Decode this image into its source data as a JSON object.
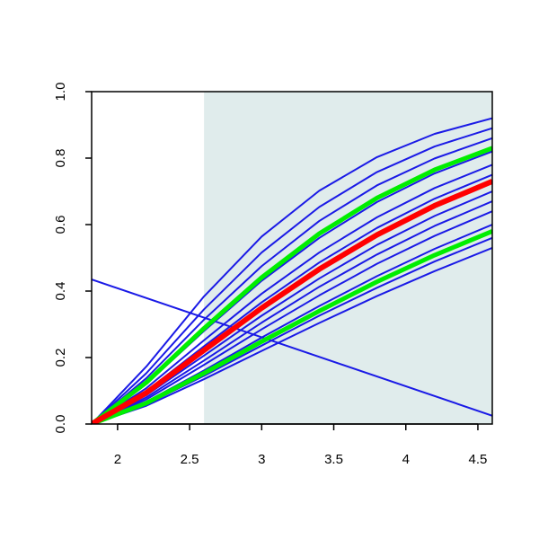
{
  "chart_data": {
    "type": "line",
    "xlim": [
      1.82,
      4.6
    ],
    "ylim": [
      0,
      1
    ],
    "xticks": [
      2.0,
      2.5,
      3.0,
      3.5,
      4.0,
      4.5
    ],
    "yticks": [
      {
        "value": 0,
        "label": "0.0"
      },
      {
        "value": 0.2,
        "label": "0.2"
      },
      {
        "value": 0.4,
        "label": "0.4"
      },
      {
        "value": 0.6,
        "label": "0.6"
      },
      {
        "value": 0.8,
        "label": "0.8"
      },
      {
        "value": 1,
        "label": "1.0"
      }
    ],
    "shaded_region": {
      "x": [
        2.6,
        4.6
      ],
      "color": "#e0ecec"
    },
    "series": [
      {
        "color": "#1a1ae6",
        "line_width": 2,
        "x": [
          1.82,
          2.2,
          2.6,
          3.0,
          3.4,
          3.8,
          4.2,
          4.6
        ],
        "values": [
          0,
          0.173,
          0.384,
          0.564,
          0.702,
          0.803,
          0.873,
          0.92
        ]
      },
      {
        "color": "#1a1ae6",
        "line_width": 2,
        "x": [
          1.82,
          2.2,
          2.6,
          3.0,
          3.4,
          3.8,
          4.2,
          4.6
        ],
        "values": [
          0,
          0.153,
          0.345,
          0.516,
          0.653,
          0.758,
          0.835,
          0.89
        ]
      },
      {
        "color": "#1a1ae6",
        "line_width": 2,
        "x": [
          1.82,
          2.2,
          2.6,
          3.0,
          3.4,
          3.8,
          4.2,
          4.6
        ],
        "values": [
          0,
          0.138,
          0.314,
          0.475,
          0.611,
          0.718,
          0.799,
          0.86
        ]
      },
      {
        "color": "#1a1ae6",
        "line_width": 2,
        "x": [
          1.82,
          2.2,
          2.6,
          3.0,
          3.4,
          3.8,
          4.2,
          4.6
        ],
        "values": [
          0,
          0.121,
          0.28,
          0.431,
          0.56,
          0.668,
          0.754,
          0.82
        ]
      },
      {
        "color": "#1a1ae6",
        "line_width": 2,
        "x": [
          1.82,
          2.2,
          2.6,
          3.0,
          3.4,
          3.8,
          4.2,
          4.6
        ],
        "values": [
          0,
          0.108,
          0.252,
          0.392,
          0.516,
          0.622,
          0.71,
          0.78
        ]
      },
      {
        "color": "#1a1ae6",
        "line_width": 2,
        "x": [
          1.82,
          2.2,
          2.6,
          3.0,
          3.4,
          3.8,
          4.2,
          4.6
        ],
        "values": [
          0,
          0.099,
          0.234,
          0.366,
          0.486,
          0.59,
          0.678,
          0.75
        ]
      },
      {
        "color": "#1a1ae6",
        "line_width": 2,
        "x": [
          1.82,
          2.2,
          2.6,
          3.0,
          3.4,
          3.8,
          4.2,
          4.6
        ],
        "values": [
          0,
          0.087,
          0.206,
          0.326,
          0.438,
          0.539,
          0.626,
          0.7
        ]
      },
      {
        "color": "#1a1ae6",
        "line_width": 2,
        "x": [
          1.82,
          2.2,
          2.6,
          3.0,
          3.4,
          3.8,
          4.2,
          4.6
        ],
        "values": [
          0,
          0.08,
          0.191,
          0.305,
          0.413,
          0.51,
          0.596,
          0.67
        ]
      },
      {
        "color": "#1a1ae6",
        "line_width": 2,
        "x": [
          1.82,
          2.2,
          2.6,
          3.0,
          3.4,
          3.8,
          4.2,
          4.6
        ],
        "values": [
          0,
          0.074,
          0.178,
          0.285,
          0.387,
          0.482,
          0.566,
          0.64
        ]
      },
      {
        "color": "#1a1ae6",
        "line_width": 2,
        "x": [
          1.82,
          2.2,
          2.6,
          3.0,
          3.4,
          3.8,
          4.2,
          4.6
        ],
        "values": [
          0,
          0.067,
          0.161,
          0.26,
          0.355,
          0.445,
          0.527,
          0.6
        ]
      },
      {
        "color": "#1a1ae6",
        "line_width": 2,
        "x": [
          1.82,
          2.2,
          2.6,
          3.0,
          3.4,
          3.8,
          4.2,
          4.6
        ],
        "values": [
          0,
          0.06,
          0.145,
          0.236,
          0.326,
          0.41,
          0.489,
          0.56
        ]
      },
      {
        "color": "#1a1ae6",
        "line_width": 2,
        "x": [
          1.82,
          2.2,
          2.6,
          3.0,
          3.4,
          3.8,
          4.2,
          4.6
        ],
        "values": [
          0,
          0.055,
          0.135,
          0.22,
          0.304,
          0.385,
          0.46,
          0.53
        ]
      },
      {
        "color": "#1a1ae6",
        "line_width": 2,
        "x": [
          1.82,
          4.6
        ],
        "values": [
          0.435,
          0.025
        ]
      },
      {
        "color": "#00ee00",
        "line_width": 5,
        "x": [
          1.82,
          2.2,
          2.6,
          3.0,
          3.4,
          3.8,
          4.2,
          4.6
        ],
        "values": [
          0,
          0.125,
          0.288,
          0.441,
          0.573,
          0.68,
          0.765,
          0.83
        ]
      },
      {
        "color": "#00ee00",
        "line_width": 5,
        "x": [
          1.82,
          2.2,
          2.6,
          3.0,
          3.4,
          3.8,
          4.2,
          4.6
        ],
        "values": [
          0,
          0.063,
          0.153,
          0.248,
          0.34,
          0.428,
          0.508,
          0.58
        ]
      },
      {
        "color": "#ff0000",
        "line_width": 6,
        "x": [
          1.82,
          2.2,
          2.6,
          3.0,
          3.4,
          3.8,
          4.2,
          4.6
        ],
        "values": [
          0,
          0.094,
          0.222,
          0.349,
          0.466,
          0.569,
          0.657,
          0.73
        ]
      }
    ]
  }
}
